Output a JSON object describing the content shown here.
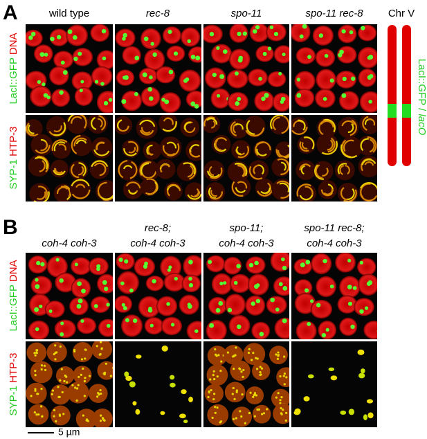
{
  "panel_a": {
    "label": "A",
    "columns": [
      "wild type",
      "rec-8",
      "spo-11",
      "spo-11 rec-8"
    ],
    "row_labels": [
      {
        "green": "LacI::GFP",
        "red": "DNA"
      },
      {
        "green": "SYP-1",
        "red": "HTP-3"
      }
    ],
    "diagram": {
      "title": "Chr V",
      "label_green": "LacI::GFP /",
      "label_italic": "lacO"
    }
  },
  "panel_b": {
    "label": "B",
    "columns": [
      [
        "coh-4 coh-3"
      ],
      [
        "rec-8;",
        "coh-4 coh-3"
      ],
      [
        "spo-11;",
        "coh-4 coh-3"
      ],
      [
        "spo-11 rec-8;",
        "coh-4 coh-3"
      ]
    ],
    "row_labels": [
      {
        "green": "LacI::GFP",
        "red": "DNA"
      },
      {
        "green": "SYP-1",
        "red": "HTP-3"
      }
    ]
  },
  "scale_bar": "5 µm"
}
